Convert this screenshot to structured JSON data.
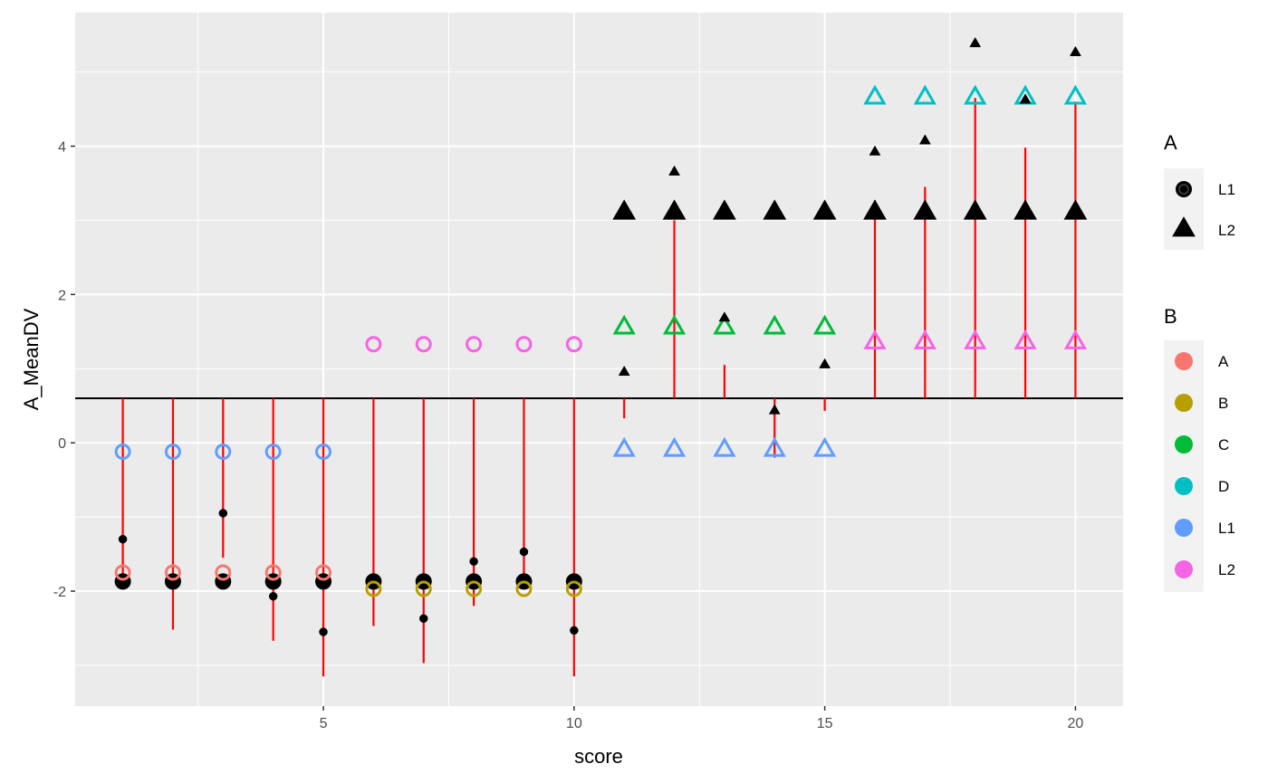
{
  "chart_data": {
    "type": "scatter",
    "xlabel": "score",
    "ylabel": "A_MeanDV",
    "xlim": [
      0.05,
      20.95
    ],
    "ylim": [
      -3.55,
      5.8
    ],
    "x_ticks": [
      5,
      10,
      15,
      20
    ],
    "x_tick_labels": [
      "5",
      "10",
      "15",
      "20"
    ],
    "y_ticks": [
      -2,
      0,
      2,
      4
    ],
    "y_tick_labels": [
      "-2",
      "0",
      "2",
      "4"
    ],
    "grid": true,
    "reference_line_y": 0.6,
    "legend_position": "right",
    "colors": {
      "A": "#F8766D",
      "B": "#B79F00",
      "C": "#00BA38",
      "D": "#00BFC4",
      "L1": "#619CFF",
      "L2": "#F564E3",
      "segment": "#FF0000",
      "panel": "#EBEBEB"
    },
    "legends": [
      {
        "title": "A",
        "items": [
          {
            "label": "L1",
            "shape": "circle"
          },
          {
            "label": "L2",
            "shape": "triangle"
          }
        ]
      },
      {
        "title": "B",
        "items": [
          {
            "label": "A",
            "color": "#F8766D"
          },
          {
            "label": "B",
            "color": "#B79F00"
          },
          {
            "label": "C",
            "color": "#00BA38"
          },
          {
            "label": "D",
            "color": "#00BFC4"
          },
          {
            "label": "L1",
            "color": "#619CFF"
          },
          {
            "label": "L2",
            "color": "#F564E3"
          }
        ]
      }
    ],
    "large_black_points": [
      {
        "x": 1,
        "y": -1.87,
        "A": "L1"
      },
      {
        "x": 2,
        "y": -1.87,
        "A": "L1"
      },
      {
        "x": 3,
        "y": -1.87,
        "A": "L1"
      },
      {
        "x": 4,
        "y": -1.87,
        "A": "L1"
      },
      {
        "x": 5,
        "y": -1.87,
        "A": "L1"
      },
      {
        "x": 6,
        "y": -1.87,
        "A": "L1"
      },
      {
        "x": 7,
        "y": -1.87,
        "A": "L1"
      },
      {
        "x": 8,
        "y": -1.87,
        "A": "L1"
      },
      {
        "x": 9,
        "y": -1.87,
        "A": "L1"
      },
      {
        "x": 10,
        "y": -1.87,
        "A": "L1"
      },
      {
        "x": 11,
        "y": 3.1,
        "A": "L2"
      },
      {
        "x": 12,
        "y": 3.1,
        "A": "L2"
      },
      {
        "x": 13,
        "y": 3.1,
        "A": "L2"
      },
      {
        "x": 14,
        "y": 3.1,
        "A": "L2"
      },
      {
        "x": 15,
        "y": 3.1,
        "A": "L2"
      },
      {
        "x": 16,
        "y": 3.1,
        "A": "L2"
      },
      {
        "x": 17,
        "y": 3.1,
        "A": "L2"
      },
      {
        "x": 18,
        "y": 3.1,
        "A": "L2"
      },
      {
        "x": 19,
        "y": 3.1,
        "A": "L2"
      },
      {
        "x": 20,
        "y": 3.1,
        "A": "L2"
      }
    ],
    "group_mean_points": [
      {
        "x": 1,
        "y": -1.75,
        "B": "A",
        "A": "L1"
      },
      {
        "x": 2,
        "y": -1.75,
        "B": "A",
        "A": "L1"
      },
      {
        "x": 3,
        "y": -1.75,
        "B": "A",
        "A": "L1"
      },
      {
        "x": 4,
        "y": -1.75,
        "B": "A",
        "A": "L1"
      },
      {
        "x": 5,
        "y": -1.75,
        "B": "A",
        "A": "L1"
      },
      {
        "x": 6,
        "y": -1.97,
        "B": "B",
        "A": "L1"
      },
      {
        "x": 7,
        "y": -1.97,
        "B": "B",
        "A": "L1"
      },
      {
        "x": 8,
        "y": -1.97,
        "B": "B",
        "A": "L1"
      },
      {
        "x": 9,
        "y": -1.97,
        "B": "B",
        "A": "L1"
      },
      {
        "x": 10,
        "y": -1.97,
        "B": "B",
        "A": "L1"
      },
      {
        "x": 11,
        "y": 1.55,
        "B": "C",
        "A": "L2"
      },
      {
        "x": 12,
        "y": 1.55,
        "B": "C",
        "A": "L2"
      },
      {
        "x": 13,
        "y": 1.55,
        "B": "C",
        "A": "L2"
      },
      {
        "x": 14,
        "y": 1.55,
        "B": "C",
        "A": "L2"
      },
      {
        "x": 15,
        "y": 1.55,
        "B": "C",
        "A": "L2"
      },
      {
        "x": 16,
        "y": 4.65,
        "B": "D",
        "A": "L2"
      },
      {
        "x": 17,
        "y": 4.65,
        "B": "D",
        "A": "L2"
      },
      {
        "x": 18,
        "y": 4.65,
        "B": "D",
        "A": "L2"
      },
      {
        "x": 19,
        "y": 4.65,
        "B": "D",
        "A": "L2"
      },
      {
        "x": 20,
        "y": 4.65,
        "B": "D",
        "A": "L2"
      },
      {
        "x": 1,
        "y": -0.12,
        "B": "L1",
        "A": "L1"
      },
      {
        "x": 2,
        "y": -0.12,
        "B": "L1",
        "A": "L1"
      },
      {
        "x": 3,
        "y": -0.12,
        "B": "L1",
        "A": "L1"
      },
      {
        "x": 4,
        "y": -0.12,
        "B": "L1",
        "A": "L1"
      },
      {
        "x": 5,
        "y": -0.12,
        "B": "L1",
        "A": "L1"
      },
      {
        "x": 11,
        "y": -0.1,
        "B": "L1",
        "A": "L2"
      },
      {
        "x": 12,
        "y": -0.1,
        "B": "L1",
        "A": "L2"
      },
      {
        "x": 13,
        "y": -0.1,
        "B": "L1",
        "A": "L2"
      },
      {
        "x": 14,
        "y": -0.1,
        "B": "L1",
        "A": "L2"
      },
      {
        "x": 15,
        "y": -0.1,
        "B": "L1",
        "A": "L2"
      },
      {
        "x": 6,
        "y": 1.33,
        "B": "L2",
        "A": "L1"
      },
      {
        "x": 7,
        "y": 1.33,
        "B": "L2",
        "A": "L1"
      },
      {
        "x": 8,
        "y": 1.33,
        "B": "L2",
        "A": "L1"
      },
      {
        "x": 9,
        "y": 1.33,
        "B": "L2",
        "A": "L1"
      },
      {
        "x": 10,
        "y": 1.33,
        "B": "L2",
        "A": "L1"
      },
      {
        "x": 16,
        "y": 1.35,
        "B": "L2",
        "A": "L2"
      },
      {
        "x": 17,
        "y": 1.35,
        "B": "L2",
        "A": "L2"
      },
      {
        "x": 18,
        "y": 1.35,
        "B": "L2",
        "A": "L2"
      },
      {
        "x": 19,
        "y": 1.35,
        "B": "L2",
        "A": "L2"
      },
      {
        "x": 20,
        "y": 1.35,
        "B": "L2",
        "A": "L2"
      }
    ],
    "observations": [
      {
        "x": 1,
        "y": -1.3,
        "A": "L1"
      },
      {
        "x": 3,
        "y": -0.95,
        "A": "L1"
      },
      {
        "x": 4,
        "y": -2.07,
        "A": "L1"
      },
      {
        "x": 5,
        "y": -2.55,
        "A": "L1"
      },
      {
        "x": 7,
        "y": -2.37,
        "A": "L1"
      },
      {
        "x": 8,
        "y": -1.6,
        "A": "L1"
      },
      {
        "x": 9,
        "y": -1.47,
        "A": "L1"
      },
      {
        "x": 10,
        "y": -2.53,
        "A": "L1"
      },
      {
        "x": 11,
        "y": 0.95,
        "A": "L2"
      },
      {
        "x": 12,
        "y": 3.65,
        "A": "L2"
      },
      {
        "x": 13,
        "y": 1.68,
        "A": "L2"
      },
      {
        "x": 14,
        "y": 0.43,
        "A": "L2"
      },
      {
        "x": 15,
        "y": 1.05,
        "A": "L2"
      },
      {
        "x": 16,
        "y": 3.92,
        "A": "L2"
      },
      {
        "x": 17,
        "y": 4.07,
        "A": "L2"
      },
      {
        "x": 18,
        "y": 5.38,
        "A": "L2"
      },
      {
        "x": 19,
        "y": 4.62,
        "A": "L2"
      },
      {
        "x": 20,
        "y": 5.26,
        "A": "L2"
      }
    ],
    "segments": [
      {
        "x": 1,
        "y_start": 0.6,
        "y_end": -1.78
      },
      {
        "x": 2,
        "y_start": 0.6,
        "y_end": -2.52
      },
      {
        "x": 3,
        "y_start": 0.6,
        "y_end": -1.55
      },
      {
        "x": 4,
        "y_start": 0.6,
        "y_end": -2.67
      },
      {
        "x": 5,
        "y_start": 0.6,
        "y_end": -3.15
      },
      {
        "x": 6,
        "y_start": 0.6,
        "y_end": -2.47
      },
      {
        "x": 7,
        "y_start": 0.6,
        "y_end": -2.97
      },
      {
        "x": 8,
        "y_start": 0.6,
        "y_end": -2.2
      },
      {
        "x": 9,
        "y_start": 0.6,
        "y_end": -1.9
      },
      {
        "x": 10,
        "y_start": 0.6,
        "y_end": -3.15
      },
      {
        "x": 11,
        "y_start": 0.6,
        "y_end": 0.33
      },
      {
        "x": 12,
        "y_start": 0.6,
        "y_end": 3.0
      },
      {
        "x": 13,
        "y_start": 0.6,
        "y_end": 1.05
      },
      {
        "x": 14,
        "y_start": 0.6,
        "y_end": -0.2
      },
      {
        "x": 15,
        "y_start": 0.6,
        "y_end": 0.43
      },
      {
        "x": 16,
        "y_start": 0.6,
        "y_end": 3.27
      },
      {
        "x": 17,
        "y_start": 0.6,
        "y_end": 3.45
      },
      {
        "x": 18,
        "y_start": 0.6,
        "y_end": 4.65
      },
      {
        "x": 19,
        "y_start": 0.6,
        "y_end": 3.98
      },
      {
        "x": 20,
        "y_start": 0.6,
        "y_end": 4.6
      }
    ]
  }
}
